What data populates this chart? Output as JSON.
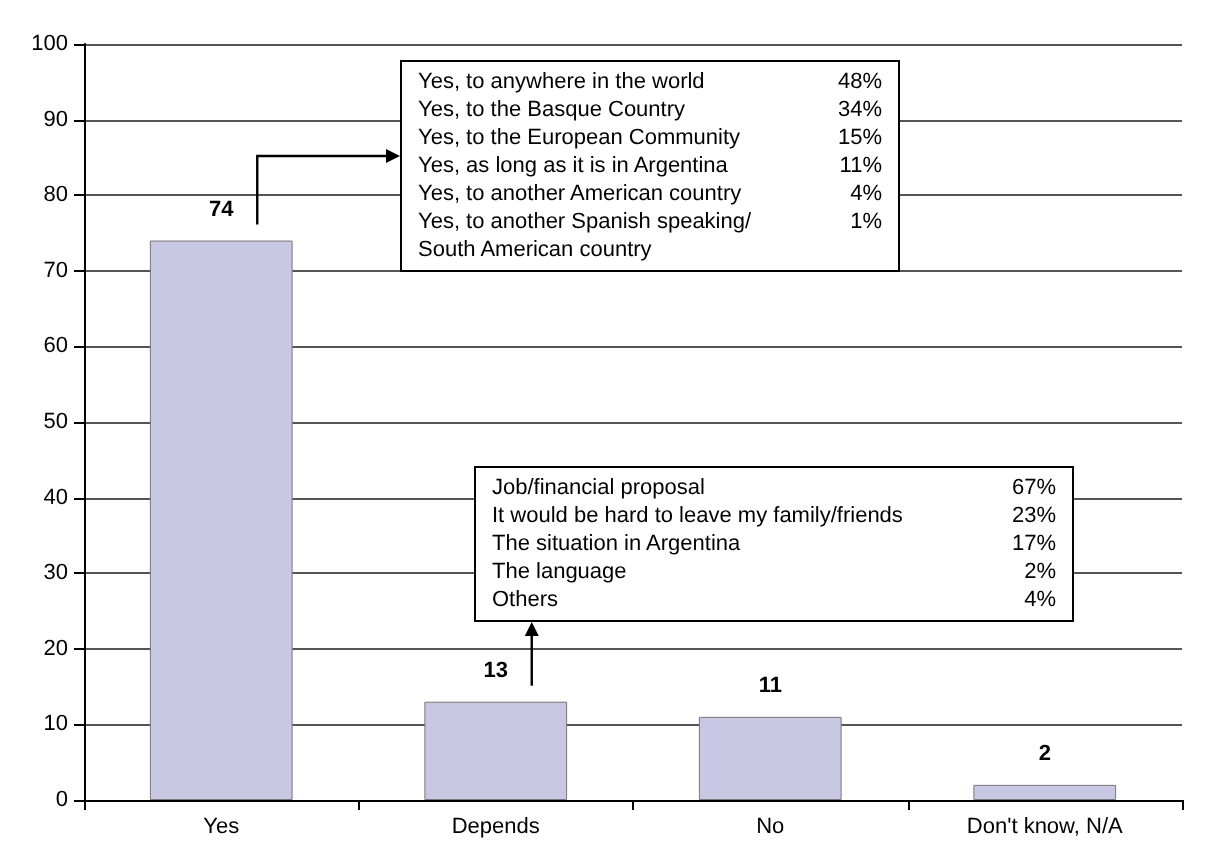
{
  "chart_data": {
    "type": "bar",
    "categories": [
      "Yes",
      "Depends",
      "No",
      "Don't know, N/A"
    ],
    "values": [
      74,
      13,
      11,
      2
    ],
    "color": "#c8c8e4",
    "ylim": [
      0,
      100
    ],
    "yticks": [
      0,
      10,
      20,
      30,
      40,
      50,
      60,
      70,
      80,
      90,
      100
    ],
    "grid": "y",
    "data_labels": true,
    "annotations": [
      "Yes, to anywhere in the world 48%",
      "Yes, to the Basque Country 34%",
      "Yes, to the European Community 15%",
      "Yes, as long as it is in Argentina 11%",
      "Yes, to another American country 4%",
      "Yes, to another Spanish speaking/ South American country 1%",
      "Job/financial proposal 67%",
      "It would be hard to leave my family/friends 23%",
      "The situation in Argentina 17%",
      "The language 2%",
      "Others 4%"
    ]
  }
}
